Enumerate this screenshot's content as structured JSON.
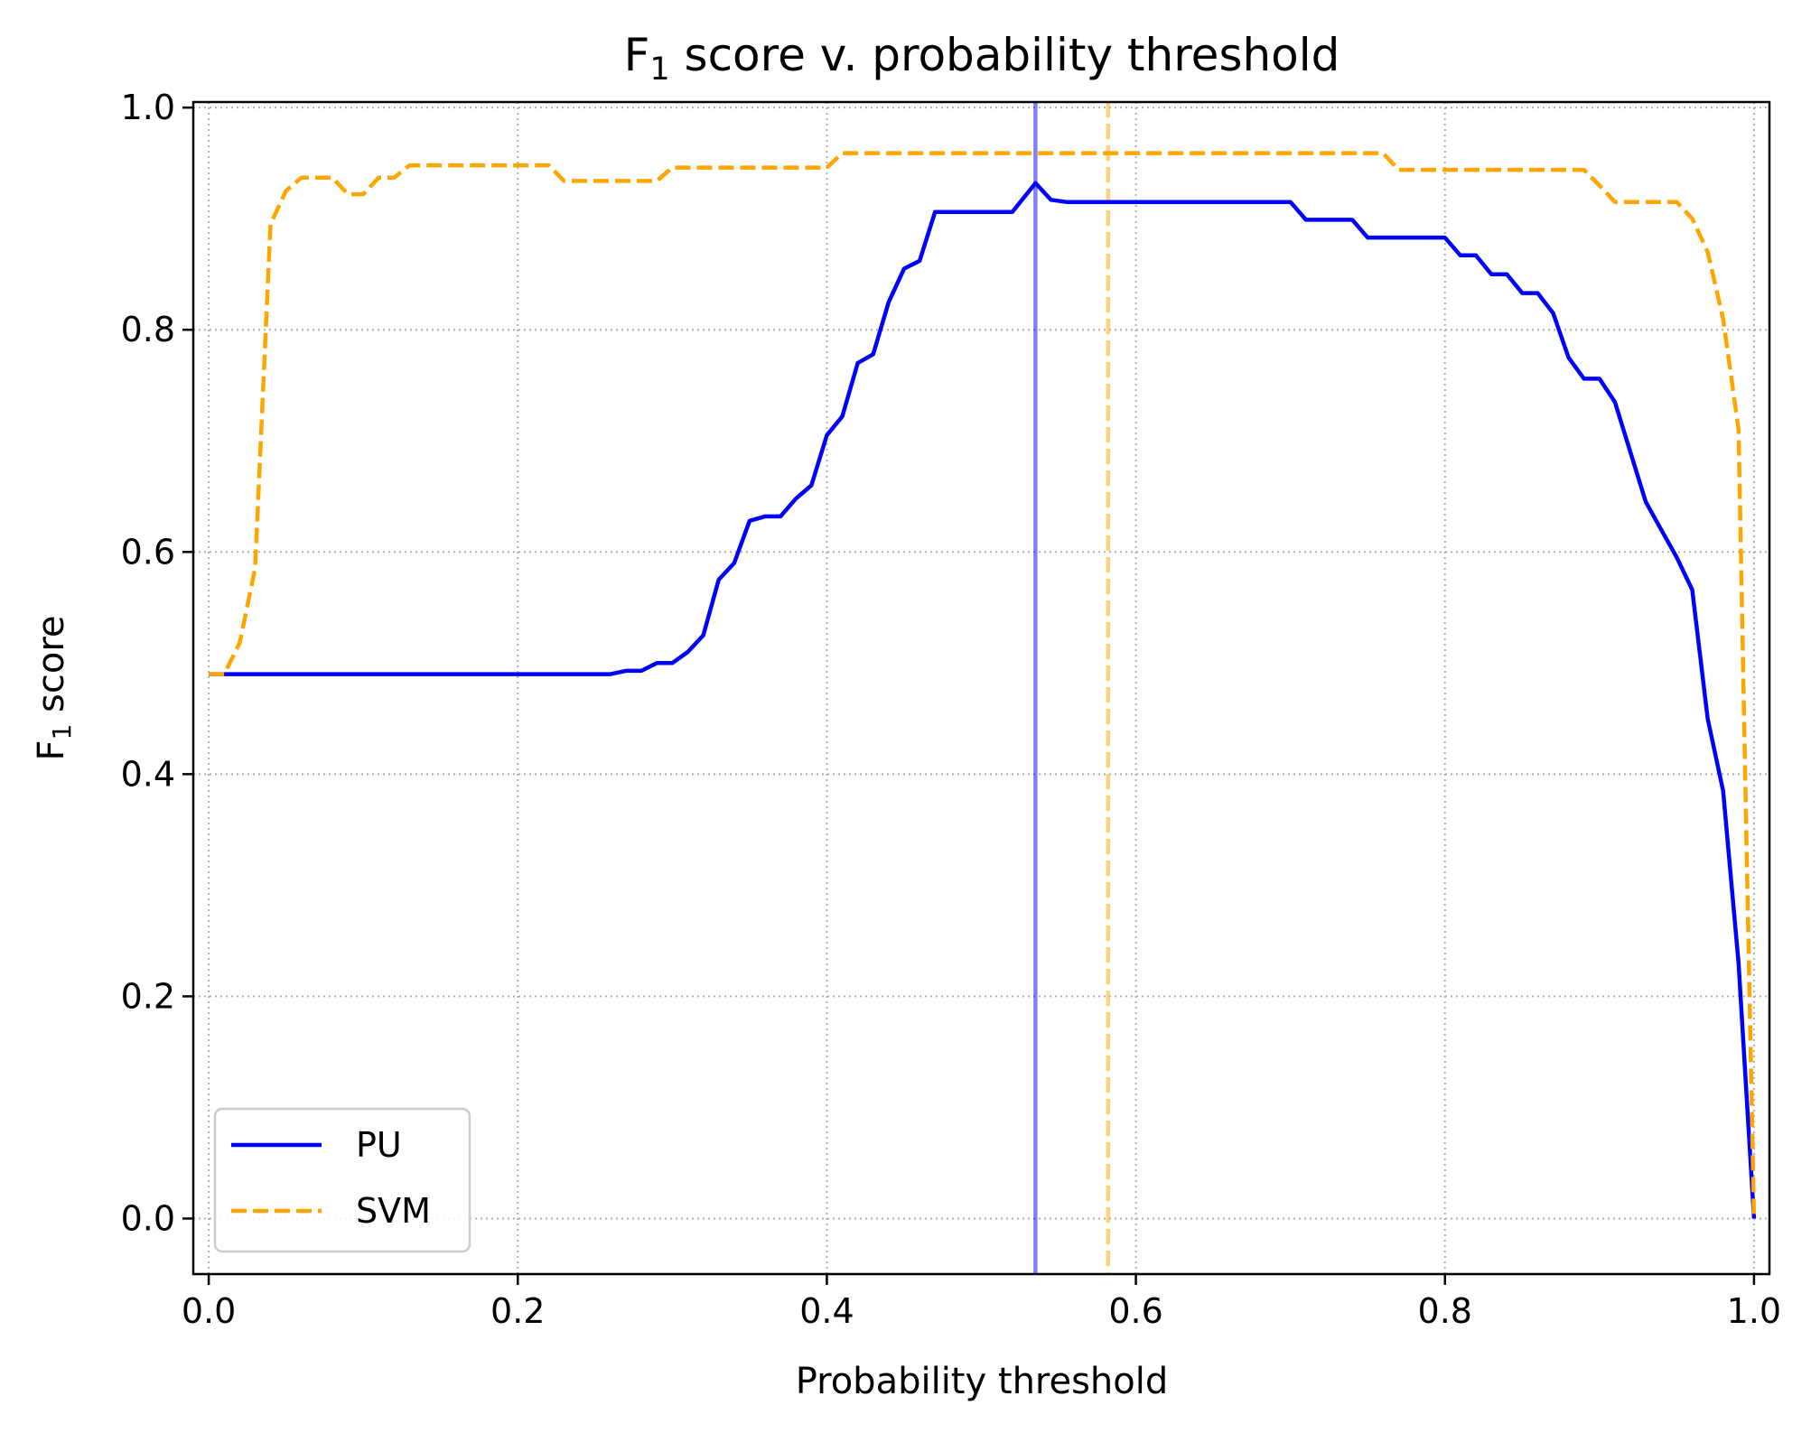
{
  "chart_data": {
    "type": "line",
    "title": {
      "main": "F",
      "sub": "1",
      "rest": " score v. probability threshold"
    },
    "xlabel": "Probability threshold",
    "ylabel": {
      "main": "F",
      "sub": "1",
      "rest": " score"
    },
    "xlim": [
      -0.01,
      1.01
    ],
    "ylim": [
      -0.05,
      1.005
    ],
    "xticks": [
      0.0,
      0.2,
      0.4,
      0.6,
      0.8,
      1.0
    ],
    "xtick_labels": [
      "0.0",
      "0.2",
      "0.4",
      "0.6",
      "0.8",
      "1.0"
    ],
    "yticks": [
      0.0,
      0.2,
      0.4,
      0.6,
      0.8,
      1.0
    ],
    "ytick_labels": [
      "0.0",
      "0.2",
      "0.4",
      "0.6",
      "0.8",
      "1.0"
    ],
    "grid": true,
    "legend_position": "lower-left",
    "series": [
      {
        "name": "PU",
        "color": "#0000ff",
        "style": "solid",
        "x": [
          0.0,
          0.26,
          0.27,
          0.28,
          0.29,
          0.3,
          0.31,
          0.32,
          0.33,
          0.34,
          0.35,
          0.36,
          0.37,
          0.38,
          0.39,
          0.4,
          0.41,
          0.42,
          0.43,
          0.44,
          0.45,
          0.46,
          0.47,
          0.48,
          0.52,
          0.535,
          0.545,
          0.555,
          0.7,
          0.71,
          0.74,
          0.75,
          0.8,
          0.81,
          0.82,
          0.83,
          0.84,
          0.85,
          0.86,
          0.87,
          0.88,
          0.89,
          0.9,
          0.91,
          0.92,
          0.93,
          0.94,
          0.95,
          0.96,
          0.97,
          0.98,
          0.99,
          1.0
        ],
        "values": [
          0.49,
          0.49,
          0.493,
          0.493,
          0.5,
          0.5,
          0.51,
          0.525,
          0.575,
          0.59,
          0.628,
          0.632,
          0.632,
          0.648,
          0.66,
          0.705,
          0.722,
          0.77,
          0.778,
          0.825,
          0.855,
          0.862,
          0.906,
          0.906,
          0.906,
          0.932,
          0.917,
          0.915,
          0.915,
          0.899,
          0.899,
          0.883,
          0.883,
          0.867,
          0.867,
          0.85,
          0.85,
          0.833,
          0.833,
          0.815,
          0.775,
          0.756,
          0.756,
          0.735,
          0.69,
          0.645,
          0.62,
          0.595,
          0.566,
          0.45,
          0.385,
          0.23,
          0.0
        ]
      },
      {
        "name": "SVM",
        "color": "#ffa500",
        "style": "dashed",
        "x": [
          0.0,
          0.01,
          0.02,
          0.03,
          0.04,
          0.05,
          0.06,
          0.08,
          0.09,
          0.1,
          0.11,
          0.12,
          0.13,
          0.22,
          0.23,
          0.29,
          0.3,
          0.4,
          0.41,
          0.76,
          0.77,
          0.89,
          0.9,
          0.91,
          0.95,
          0.96,
          0.97,
          0.98,
          0.99,
          0.995,
          1.0
        ],
        "values": [
          0.49,
          0.49,
          0.518,
          0.585,
          0.895,
          0.925,
          0.937,
          0.937,
          0.922,
          0.922,
          0.937,
          0.937,
          0.948,
          0.948,
          0.934,
          0.934,
          0.946,
          0.946,
          0.959,
          0.959,
          0.944,
          0.944,
          0.93,
          0.915,
          0.915,
          0.9,
          0.87,
          0.81,
          0.71,
          0.35,
          0.0
        ]
      }
    ],
    "vlines": [
      {
        "series": "PU",
        "x": 0.535,
        "color": "#0000ff",
        "style": "solid",
        "alpha": 0.5
      },
      {
        "series": "SVM",
        "x": 0.582,
        "color": "#ffa500",
        "style": "dashed",
        "alpha": 0.5
      }
    ]
  }
}
